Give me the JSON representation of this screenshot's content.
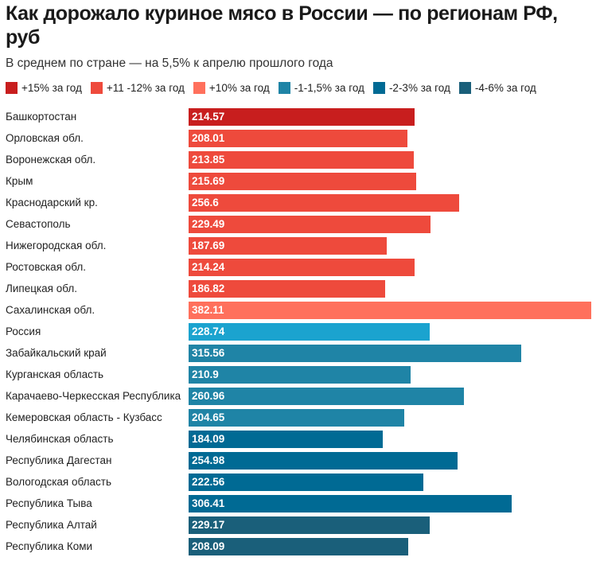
{
  "header": {
    "title": "Как дорожало куриное мясо в России — по регионам РФ, руб",
    "subtitle": "В среднем по стране — на 5,5% к апрелю прошлого года"
  },
  "legend": [
    {
      "label": "+15% за год",
      "color": "#c81e1e",
      "key": "p15"
    },
    {
      "label": "+11 -12% за год",
      "color": "#ee4a3c",
      "key": "p11"
    },
    {
      "label": "+10% за год",
      "color": "#ff705c",
      "key": "p10"
    },
    {
      "label": "-1-1,5% за год",
      "color": "#1f84a6",
      "key": "m1"
    },
    {
      "label": "-2-3% за год",
      "color": "#006a94",
      "key": "m2"
    },
    {
      "label": "-4-6% за год",
      "color": "#1a5f7a",
      "key": "m4"
    }
  ],
  "chart_data": {
    "type": "bar",
    "orientation": "horizontal",
    "title": "Как дорожало куриное мясо в России — по регионам РФ, руб",
    "subtitle": "В среднем по стране — на 5,5% к апрелю прошлого года",
    "xlabel": "",
    "ylabel": "",
    "xlim": [
      0,
      382.11
    ],
    "grid": false,
    "legend_position": "top-left",
    "categories": [
      "Башкортостан",
      "Орловская обл.",
      "Воронежская обл.",
      "Крым",
      "Краснодарский кр.",
      "Севастополь",
      "Нижегородская обл.",
      "Ростовская обл.",
      "Липецкая обл.",
      "Сахалинская обл.",
      "Россия",
      "Забайкальский край",
      "Курганская область",
      "Карачаево-Черкесская Республика",
      "Кемеровская область - Кузбасс",
      "Челябинская область",
      "Республика Дагестан",
      "Вологодская область",
      "Республика Тыва",
      "Республика Алтай",
      "Республика Коми"
    ],
    "values": [
      214.57,
      208.01,
      213.85,
      215.69,
      256.6,
      229.49,
      187.69,
      214.24,
      186.82,
      382.11,
      228.74,
      315.56,
      210.9,
      260.96,
      204.65,
      184.09,
      254.98,
      222.56,
      306.41,
      229.17,
      208.09
    ],
    "value_labels": [
      "214.57",
      "208.01",
      "213.85",
      "215.69",
      "256.6",
      "229.49",
      "187.69",
      "214.24",
      "186.82",
      "382.11",
      "228.74",
      "315.56",
      "210.9",
      "260.96",
      "204.65",
      "184.09",
      "254.98",
      "222.56",
      "306.41",
      "229.17",
      "208.09"
    ],
    "groups": [
      "+15% за год",
      "+11 -12% за год",
      "+11 -12% за год",
      "+11 -12% за год",
      "+11 -12% за год",
      "+11 -12% за год",
      "+11 -12% за год",
      "+11 -12% за год",
      "+11 -12% за год",
      "+10% за год",
      "Россия",
      "-1-1,5% за год",
      "-1-1,5% за год",
      "-1-1,5% за год",
      "-1-1,5% за год",
      "-2-3% за год",
      "-2-3% за год",
      "-2-3% за год",
      "-2-3% за год",
      "-4-6% за год",
      "-4-6% за год"
    ],
    "colors": [
      "#c81e1e",
      "#ee4a3c",
      "#ee4a3c",
      "#ee4a3c",
      "#ee4a3c",
      "#ee4a3c",
      "#ee4a3c",
      "#ee4a3c",
      "#ee4a3c",
      "#ff705c",
      "#1ba3cf",
      "#1f84a6",
      "#1f84a6",
      "#1f84a6",
      "#1f84a6",
      "#006a94",
      "#006a94",
      "#006a94",
      "#006a94",
      "#1a5f7a",
      "#1a5f7a"
    ]
  }
}
